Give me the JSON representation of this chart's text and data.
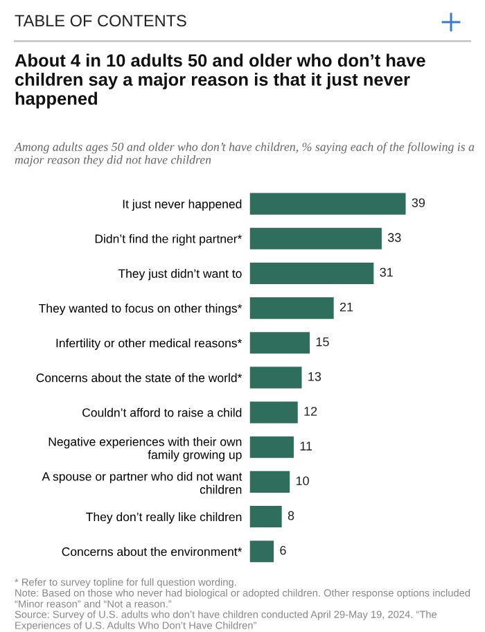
{
  "chart_data": {
    "type": "bar",
    "orientation": "horizontal",
    "title": "About 4 in 10 adults 50 and older who don’t have children say a major reason is that it just never happened",
    "subtitle": "Among adults ages 50 and older who don’t have children, % saying each of the following is a major reason they did not have children",
    "categories": [
      "It just never happened",
      "Didn’t find the right partner*",
      "They just didn’t want to",
      "They wanted to focus on other things*",
      "Infertility or other medical reasons*",
      "Concerns about the state of the world*",
      "Couldn’t afford to raise a child",
      "Negative experiences with their own\nfamily growing up",
      "A spouse or partner who did not want\nchildren",
      "They don’t really like children",
      "Concerns about the environment*"
    ],
    "values": [
      39,
      33,
      31,
      21,
      15,
      13,
      12,
      11,
      10,
      8,
      6
    ],
    "color": "#2f6e5c",
    "data_labels": true,
    "annotations": [
      "TABLE OF CONTENTS",
      "* Refer to survey topline for full question wording.",
      "Note: Based on those who never had biological or adopted children. Other response options included “Minor reason” and “Not a reason.”",
      "Source: Survey of U.S. adults who don’t have children conducted April 29-May 19, 2024. “The Experiences of U.S. Adults Who Don’t Have Children”"
    ]
  }
}
